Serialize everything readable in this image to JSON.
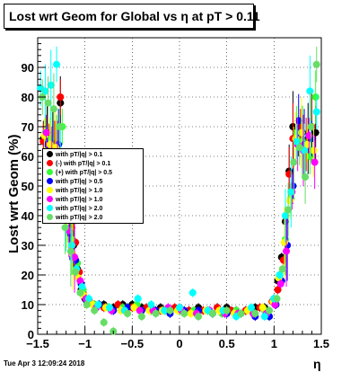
{
  "title": "Lost wrt Geom for Global vs  η at pT > 0.11",
  "footer": "Tue Apr  3 12:09:24 2018",
  "colors": [
    "#000000",
    "#ff0000",
    "#33ff33",
    "#0000ff",
    "#ffff00",
    "#ff00ff",
    "#00ffff",
    "#66dd66"
  ],
  "chart_data": {
    "type": "scatter",
    "title": "Lost wrt Geom for Global vs  η at pT > 0.11",
    "xlabel": "η",
    "ylabel": "Lost wrt Geom (%)",
    "xlim": [
      -1.5,
      1.5
    ],
    "ylim": [
      0,
      100
    ],
    "x_ticks": [
      "−1.5",
      "−1",
      "−0.5",
      "0",
      "0.5",
      "1",
      "1.5"
    ],
    "y_ticks": [
      "0",
      "10",
      "20",
      "30",
      "40",
      "50",
      "60",
      "70",
      "80",
      "90"
    ],
    "grid": true,
    "legend_position": "left-middle",
    "series": [
      {
        "name": "with pT/|q| > 0.1",
        "color": "#000000",
        "x": [
          -1.44,
          -1.4,
          -1.34,
          -1.3,
          -1.26,
          -1.2,
          -1.16,
          -1.12,
          -1.08,
          -1.04,
          -1.0,
          -0.9,
          -0.8,
          -0.7,
          -0.6,
          -0.5,
          -0.4,
          -0.3,
          -0.2,
          -0.1,
          0.0,
          0.1,
          0.2,
          0.3,
          0.4,
          0.5,
          0.6,
          0.7,
          0.8,
          0.9,
          1.0,
          1.04,
          1.08,
          1.12,
          1.16,
          1.2,
          1.26,
          1.3,
          1.36,
          1.4,
          1.44
        ],
        "y": [
          66,
          68,
          65,
          64,
          78,
          45,
          38,
          30,
          22,
          15,
          12,
          10,
          10,
          9,
          10,
          10,
          9,
          9,
          9,
          8,
          9,
          8,
          9,
          8,
          9,
          9,
          8,
          8,
          9,
          9,
          12,
          18,
          26,
          38,
          55,
          70,
          66,
          68,
          66,
          67,
          68
        ]
      },
      {
        "name": "(-) with pT/|q| > 0.1",
        "color": "#ff0000",
        "x": [
          -1.44,
          -1.38,
          -1.32,
          -1.26,
          -1.2,
          -1.14,
          -1.1,
          -1.06,
          -1.02,
          -0.95,
          -0.8,
          -0.65,
          -0.5,
          -0.35,
          -0.2,
          -0.05,
          0.1,
          0.25,
          0.4,
          0.55,
          0.7,
          0.85,
          0.98,
          1.04,
          1.1,
          1.16,
          1.2,
          1.28,
          1.34,
          1.4
        ],
        "y": [
          65,
          62,
          60,
          80,
          42,
          36,
          31,
          21,
          14,
          11,
          9,
          10,
          9,
          9,
          8,
          9,
          8,
          8,
          9,
          8,
          8,
          9,
          11,
          15,
          25,
          54,
          66,
          70,
          64,
          70
        ]
      },
      {
        "name": "(+) with pT/|q| > 0.5",
        "color": "#33ff33",
        "x": [
          -1.42,
          -1.36,
          -1.3,
          -1.24,
          -1.18,
          -1.14,
          -1.08,
          -1.02,
          -0.9,
          -0.75,
          -0.6,
          -0.45,
          -0.3,
          -0.15,
          0.0,
          0.15,
          0.3,
          0.45,
          0.6,
          0.75,
          0.9,
          1.0,
          1.06,
          1.12,
          1.18,
          1.24,
          1.3,
          1.38,
          1.44
        ],
        "y": [
          68,
          66,
          62,
          70,
          40,
          32,
          24,
          15,
          10,
          9,
          9,
          10,
          8,
          8,
          8,
          8,
          8,
          7,
          8,
          8,
          8,
          11,
          20,
          32,
          46,
          68,
          65,
          60,
          80
        ]
      },
      {
        "name": "with pT/|q| > 0.5",
        "color": "#0000ff",
        "x": [
          -1.4,
          -1.34,
          -1.28,
          -1.22,
          -1.16,
          -1.1,
          -1.04,
          -0.98,
          -0.85,
          -0.7,
          -0.55,
          -0.4,
          -0.25,
          -0.1,
          0.05,
          0.2,
          0.35,
          0.5,
          0.65,
          0.8,
          0.95,
          1.02,
          1.08,
          1.14,
          1.2,
          1.26,
          1.32,
          1.4
        ],
        "y": [
          64,
          63,
          64,
          44,
          34,
          25,
          17,
          11,
          10,
          8,
          9,
          8,
          8,
          7,
          8,
          8,
          7,
          7,
          7,
          6,
          6,
          10,
          18,
          30,
          50,
          72,
          64,
          66
        ]
      },
      {
        "name": "with pT/|q| > 1.0",
        "color": "#ffff00",
        "x": [
          -1.43,
          -1.37,
          -1.31,
          -1.25,
          -1.19,
          -1.13,
          -1.07,
          -1.01,
          -0.92,
          -0.78,
          -0.62,
          -0.48,
          -0.32,
          -0.18,
          -0.02,
          0.12,
          0.28,
          0.42,
          0.58,
          0.72,
          0.88,
          0.99,
          1.05,
          1.11,
          1.17,
          1.23,
          1.29,
          1.35,
          1.42
        ],
        "y": [
          67,
          64,
          63,
          52,
          38,
          27,
          19,
          13,
          10,
          9,
          8,
          9,
          8,
          8,
          8,
          7,
          8,
          8,
          7,
          8,
          9,
          11,
          19,
          31,
          45,
          66,
          68,
          64,
          62
        ]
      },
      {
        "name": "with pT/|q| > 1.0",
        "color": "#ff00ff",
        "x": [
          -1.41,
          -1.35,
          -1.29,
          -1.23,
          -1.17,
          -1.11,
          -1.05,
          -0.99,
          -0.88,
          -0.72,
          -0.58,
          -0.42,
          -0.28,
          -0.12,
          0.02,
          0.18,
          0.32,
          0.48,
          0.62,
          0.78,
          0.92,
          1.01,
          1.07,
          1.13,
          1.19,
          1.25,
          1.31,
          1.37,
          1.43
        ],
        "y": [
          68,
          61,
          60,
          48,
          35,
          26,
          18,
          12,
          9,
          8,
          8,
          8,
          8,
          9,
          8,
          7,
          8,
          7,
          7,
          7,
          7,
          10,
          17,
          28,
          48,
          64,
          62,
          67,
          58
        ]
      },
      {
        "name": "with pT/|q| > 2.0",
        "color": "#00ffff",
        "x": [
          -1.47,
          -1.42,
          -1.36,
          -1.3,
          -1.26,
          -1.2,
          -1.14,
          -1.09,
          -1.03,
          -0.96,
          -0.86,
          -0.74,
          -0.58,
          -0.44,
          -0.3,
          -0.16,
          0.0,
          0.14,
          0.3,
          0.46,
          0.6,
          0.76,
          0.9,
          1.0,
          1.06,
          1.12,
          1.18,
          1.24,
          1.32,
          1.38,
          1.45
        ],
        "y": [
          83,
          82,
          84,
          91,
          60,
          40,
          30,
          22,
          16,
          12,
          10,
          9,
          8,
          12,
          10,
          8,
          9,
          14,
          8,
          8,
          6,
          9,
          6,
          12,
          20,
          40,
          48,
          65,
          62,
          82,
          75
        ]
      },
      {
        "name": "with pT/|q| > 2.0",
        "color": "#66dd66",
        "x": [
          -1.45,
          -1.39,
          -1.33,
          -1.27,
          -1.21,
          -1.15,
          -1.1,
          -1.05,
          -0.98,
          -0.9,
          -0.8,
          -0.7,
          -0.55,
          -0.4,
          -0.25,
          -0.1,
          0.05,
          0.2,
          0.35,
          0.5,
          0.65,
          0.8,
          0.95,
          1.03,
          1.09,
          1.15,
          1.21,
          1.27,
          1.33,
          1.39,
          1.45
        ],
        "y": [
          80,
          78,
          76,
          70,
          36,
          28,
          21,
          14,
          10,
          8,
          4,
          1,
          7,
          6,
          7,
          8,
          7,
          6,
          7,
          8,
          7,
          7,
          8,
          12,
          22,
          42,
          58,
          63,
          53,
          70,
          91
        ]
      }
    ]
  }
}
